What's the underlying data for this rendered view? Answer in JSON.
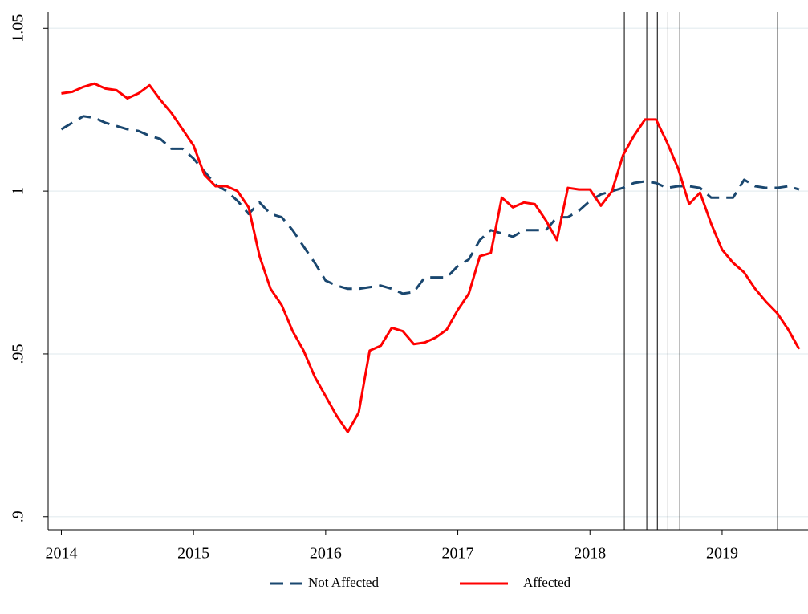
{
  "chart_data": {
    "type": "line",
    "x": [
      2014,
      2014.083,
      2014.167,
      2014.25,
      2014.333,
      2014.417,
      2014.5,
      2014.583,
      2014.667,
      2014.75,
      2014.833,
      2014.917,
      2015,
      2015.083,
      2015.167,
      2015.25,
      2015.333,
      2015.417,
      2015.5,
      2015.583,
      2015.667,
      2015.75,
      2015.833,
      2015.917,
      2016,
      2016.083,
      2016.167,
      2016.25,
      2016.333,
      2016.417,
      2016.5,
      2016.583,
      2016.667,
      2016.75,
      2016.833,
      2016.917,
      2017,
      2017.083,
      2017.167,
      2017.25,
      2017.333,
      2017.417,
      2017.5,
      2017.583,
      2017.667,
      2017.75,
      2017.833,
      2017.917,
      2018,
      2018.083,
      2018.167,
      2018.25,
      2018.333,
      2018.417,
      2018.5,
      2018.583,
      2018.667,
      2018.75,
      2018.833,
      2018.917,
      2019,
      2019.083,
      2019.167,
      2019.25,
      2019.333,
      2019.417,
      2019.5,
      2019.583
    ],
    "series": [
      {
        "name": "Not Affected",
        "color": "#1a476f",
        "dash": true,
        "values": [
          1.019,
          1.021,
          1.023,
          1.0225,
          1.021,
          1.02,
          1.019,
          1.0185,
          1.017,
          1.016,
          1.013,
          1.013,
          1.01,
          1.006,
          1.002,
          1.0,
          0.997,
          0.993,
          0.9965,
          0.993,
          0.992,
          0.988,
          0.983,
          0.978,
          0.9725,
          0.971,
          0.97,
          0.97,
          0.9705,
          0.971,
          0.97,
          0.9685,
          0.969,
          0.9735,
          0.9735,
          0.9735,
          0.977,
          0.979,
          0.985,
          0.988,
          0.987,
          0.986,
          0.988,
          0.988,
          0.988,
          0.992,
          0.992,
          0.994,
          0.997,
          0.999,
          1.0,
          1.001,
          1.0025,
          1.003,
          1.0025,
          1.001,
          1.0015,
          1.0015,
          1.001,
          0.998,
          0.998,
          0.998,
          1.0035,
          1.0015,
          1.001,
          1.001,
          1.0015,
          1.0005
        ]
      },
      {
        "name": "Affected",
        "color": "#ff0000",
        "dash": false,
        "values": [
          1.03,
          1.0305,
          1.032,
          1.033,
          1.0315,
          1.031,
          1.0285,
          1.03,
          1.0325,
          1.028,
          1.024,
          1.019,
          1.014,
          1.005,
          1.0015,
          1.0015,
          1.0,
          0.995,
          0.98,
          0.97,
          0.965,
          0.957,
          0.951,
          0.943,
          0.937,
          0.931,
          0.926,
          0.932,
          0.951,
          0.9525,
          0.958,
          0.957,
          0.953,
          0.9535,
          0.955,
          0.9575,
          0.9635,
          0.9685,
          0.98,
          0.981,
          0.998,
          0.995,
          0.9965,
          0.996,
          0.991,
          0.985,
          1.001,
          1.0005,
          1.0005,
          0.9955,
          1.0,
          1.011,
          1.017,
          1.022,
          1.022,
          1.015,
          1.007,
          0.996,
          0.9995,
          0.99,
          0.982,
          0.978,
          0.975,
          0.97,
          0.966,
          0.9625,
          0.9575,
          0.9515
        ]
      }
    ],
    "vlines": [
      2018.26,
      2018.43,
      2018.51,
      2018.59,
      2018.68,
      2019.42
    ],
    "xlim": [
      2013.9,
      2019.65
    ],
    "xticks": [
      2014,
      2015,
      2016,
      2017,
      2018,
      2019
    ],
    "ylim": [
      0.896,
      1.055
    ],
    "yticks": [
      {
        "value": 0.9,
        "label": ".9"
      },
      {
        "value": 0.95,
        "label": ".95"
      },
      1,
      1.05
    ],
    "grid": true
  }
}
